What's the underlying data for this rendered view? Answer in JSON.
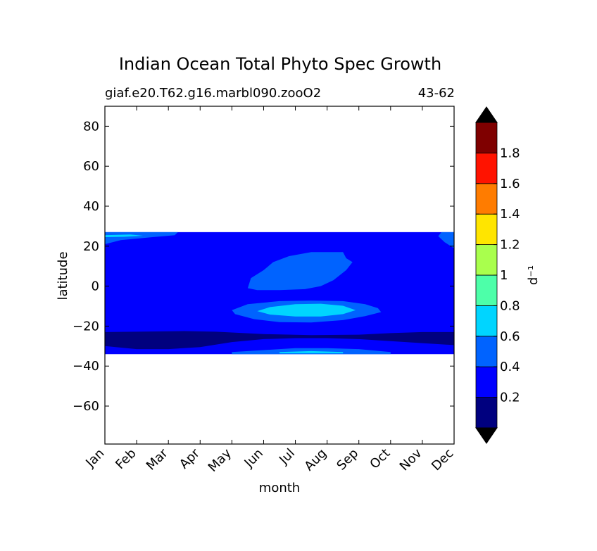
{
  "chart_data": {
    "type": "heatmap",
    "title": "Indian Ocean Total Phyto Spec Growth",
    "subtitle_left": "giaf.e20.T62.g16.marbl090.zooO2",
    "subtitle_right": "43-62",
    "xlabel": "month",
    "ylabel": "latitude",
    "x_categories": [
      "Jan",
      "Feb",
      "Mar",
      "Apr",
      "May",
      "Jun",
      "Jul",
      "Aug",
      "Sep",
      "Oct",
      "Nov",
      "Dec"
    ],
    "xlim": [
      0,
      11
    ],
    "ylim": [
      -79,
      90
    ],
    "y_ticks": [
      80,
      60,
      40,
      20,
      0,
      -20,
      -40,
      -60
    ],
    "y_tick_labels": [
      "80",
      "60",
      "40",
      "20",
      "0",
      "−20",
      "−40",
      "−60"
    ],
    "data_lat_range": [
      -34,
      27
    ],
    "colorbar": {
      "label": "d⁻¹",
      "levels": [
        0,
        0.2,
        0.4,
        0.6,
        0.8,
        1.0,
        1.2,
        1.4,
        1.6,
        1.8,
        2.0
      ],
      "tick_values": [
        0.2,
        0.4,
        0.6,
        0.8,
        1.0,
        1.2,
        1.4,
        1.6,
        1.8
      ],
      "tick_labels": [
        "0.2",
        "0.4",
        "0.6",
        "0.8",
        "1",
        "1.2",
        "1.4",
        "1.6",
        "1.8"
      ],
      "colors": [
        "#00007f",
        "#0000ff",
        "#0063ff",
        "#00d5ff",
        "#4dffa9",
        "#a9ff4d",
        "#ffe500",
        "#ff7c00",
        "#ff1300",
        "#7f0000"
      ],
      "extend": "both",
      "under_color": "#000000",
      "over_color": "#000000"
    },
    "regions": [
      {
        "level": "0.2-0.4",
        "desc": "background",
        "poly": [
          [
            0,
            -34
          ],
          [
            11,
            -34
          ],
          [
            11,
            27
          ],
          [
            0,
            27
          ]
        ]
      },
      {
        "level": "0-0.2",
        "desc": "southern low band",
        "poly": [
          [
            0,
            -23
          ],
          [
            2.5,
            -22.5
          ],
          [
            3.5,
            -22.8
          ],
          [
            5,
            -24
          ],
          [
            6.5,
            -24.5
          ],
          [
            8,
            -24.3
          ],
          [
            9,
            -23.5
          ],
          [
            10,
            -23
          ],
          [
            11,
            -23
          ],
          [
            11,
            -29.5
          ],
          [
            10,
            -28.5
          ],
          [
            9,
            -27.5
          ],
          [
            8,
            -26.5
          ],
          [
            7,
            -26
          ],
          [
            6,
            -26
          ],
          [
            5,
            -26.5
          ],
          [
            4,
            -28
          ],
          [
            3,
            -30.5
          ],
          [
            2,
            -31.5
          ],
          [
            1,
            -31.5
          ],
          [
            0,
            -30
          ]
        ]
      },
      {
        "level": "0.4-0.6",
        "desc": "northern winter patch",
        "poly": [
          [
            0,
            27
          ],
          [
            2.3,
            27
          ],
          [
            2.2,
            25.5
          ],
          [
            1.5,
            24.5
          ],
          [
            0.5,
            23
          ],
          [
            0,
            21
          ]
        ]
      },
      {
        "level": "0.4-0.6",
        "desc": "northern winter patch east",
        "poly": [
          [
            11,
            27
          ],
          [
            10.6,
            27
          ],
          [
            10.5,
            25
          ],
          [
            10.7,
            22
          ],
          [
            11,
            19
          ]
        ]
      },
      {
        "level": "0.4-0.6",
        "desc": "summer north",
        "poly": [
          [
            4.5,
            -1
          ],
          [
            4.6,
            4
          ],
          [
            5,
            8
          ],
          [
            5.3,
            12
          ],
          [
            5.8,
            15
          ],
          [
            6.5,
            17
          ],
          [
            7.5,
            17
          ],
          [
            7.6,
            14
          ],
          [
            7.8,
            12
          ],
          [
            7.6,
            8
          ],
          [
            7.2,
            3
          ],
          [
            6.8,
            0
          ],
          [
            6.3,
            -1.5
          ],
          [
            5.5,
            -2
          ],
          [
            4.8,
            -2
          ]
        ]
      },
      {
        "level": "0.4-0.6",
        "desc": "summer south",
        "poly": [
          [
            4,
            -12
          ],
          [
            4.5,
            -9
          ],
          [
            5.5,
            -7.5
          ],
          [
            6.5,
            -7.2
          ],
          [
            7.5,
            -7.5
          ],
          [
            8.2,
            -9
          ],
          [
            8.6,
            -11
          ],
          [
            8.7,
            -13
          ],
          [
            8.2,
            -15
          ],
          [
            7.5,
            -17
          ],
          [
            6.5,
            -18.2
          ],
          [
            5.5,
            -18
          ],
          [
            4.7,
            -16.5
          ],
          [
            4.1,
            -14
          ]
        ]
      },
      {
        "level": "0.4-0.6",
        "desc": "south deep patch",
        "poly": [
          [
            4,
            -33
          ],
          [
            5,
            -32
          ],
          [
            6,
            -31
          ],
          [
            7,
            -31
          ],
          [
            8,
            -31.5
          ],
          [
            9,
            -33
          ],
          [
            9,
            -34
          ],
          [
            4,
            -34
          ]
        ]
      },
      {
        "level": "0.6-0.8",
        "desc": "summer core",
        "poly": [
          [
            4.8,
            -12.5
          ],
          [
            5.2,
            -10.5
          ],
          [
            6,
            -9
          ],
          [
            6.8,
            -8.8
          ],
          [
            7.5,
            -9.8
          ],
          [
            7.9,
            -12
          ],
          [
            7.5,
            -14
          ],
          [
            6.8,
            -15.2
          ],
          [
            6,
            -15.2
          ],
          [
            5.2,
            -14.2
          ]
        ]
      },
      {
        "level": "0.6-0.8",
        "desc": "south deep sliver",
        "poly": [
          [
            5.5,
            -33
          ],
          [
            6.5,
            -32.5
          ],
          [
            7.5,
            -33
          ],
          [
            7.5,
            -33.6
          ],
          [
            5.5,
            -33.6
          ]
        ]
      },
      {
        "level": "0.6-0.8",
        "desc": "north winter sliver",
        "poly": [
          [
            0,
            25.5
          ],
          [
            0.8,
            25.8
          ],
          [
            1.2,
            25.2
          ],
          [
            0.6,
            24.7
          ],
          [
            0,
            24.5
          ]
        ]
      }
    ]
  }
}
